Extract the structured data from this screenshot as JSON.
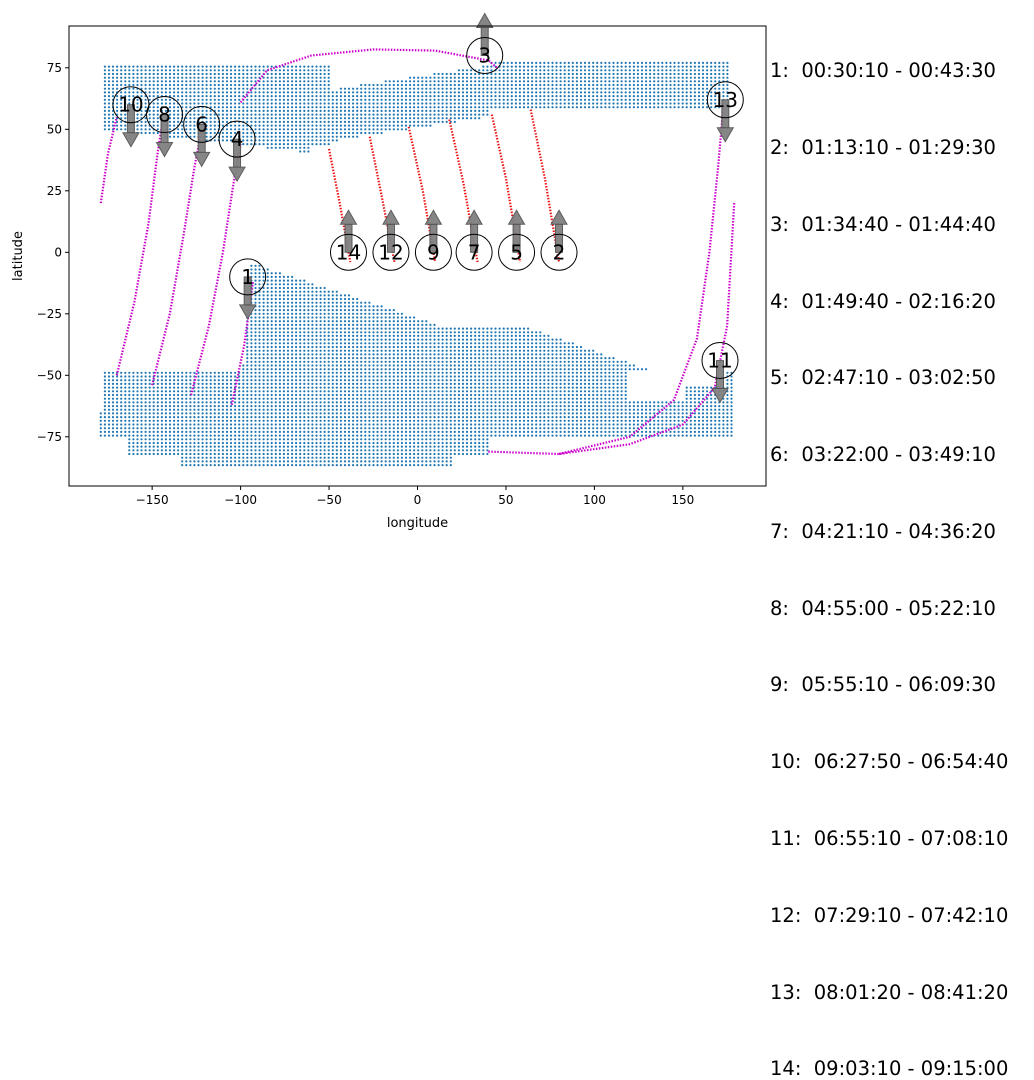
{
  "chart_data": {
    "type": "scatter",
    "xlabel": "longitude",
    "ylabel": "latitude",
    "xlim": [
      -197,
      197
    ],
    "ylim": [
      -95,
      92
    ],
    "xticks": [
      -150,
      -100,
      -50,
      0,
      50,
      100,
      150
    ],
    "yticks": [
      -75,
      -50,
      -25,
      0,
      25,
      50,
      75
    ],
    "colors": {
      "coverage": "#1f77b4",
      "magenta_track": "#cc00cc",
      "red_track": "#ee1111",
      "arrow": "#808080"
    },
    "coverage_region": {
      "description_color": "#1f77b4",
      "rows_lat_step": 1.5,
      "lon_step": 2.3
    },
    "passes": [
      {
        "id": 1,
        "label": "1",
        "time": "00:30:10 - 00:43:30",
        "track": [
          [
            -105,
            -62
          ],
          [
            -98,
            -38
          ],
          [
            -93,
            -12
          ]
        ],
        "color": "magenta",
        "marker": [
          -96,
          -10
        ],
        "arrow_dir": "down"
      },
      {
        "id": 2,
        "label": "2",
        "time": "01:13:10 - 01:29:30",
        "track": [
          [
            64,
            58
          ],
          [
            72,
            30
          ],
          [
            80,
            -4
          ]
        ],
        "color": "red",
        "marker": [
          80,
          0
        ],
        "arrow_dir": "up"
      },
      {
        "id": 3,
        "label": "3",
        "time": "01:34:40 - 01:44:40",
        "track": [
          [
            -100,
            61
          ],
          [
            -85,
            74
          ],
          [
            -60,
            80
          ],
          [
            -25,
            82.5
          ],
          [
            10,
            82
          ],
          [
            40,
            78
          ],
          [
            45,
            75
          ]
        ],
        "color": "magenta",
        "marker": [
          38,
          80
        ],
        "arrow_dir": "up"
      },
      {
        "id": 4,
        "label": "4",
        "time": "01:49:40 - 02:16:20",
        "track": [
          [
            -128,
            -58
          ],
          [
            -118,
            -30
          ],
          [
            -110,
            0
          ],
          [
            -104,
            28
          ],
          [
            -100,
            44
          ]
        ],
        "color": "magenta",
        "marker": [
          -102,
          46
        ],
        "arrow_dir": "down"
      },
      {
        "id": 5,
        "label": "5",
        "time": "02:47:10 - 03:02:50",
        "track": [
          [
            42,
            56
          ],
          [
            50,
            30
          ],
          [
            58,
            -4
          ]
        ],
        "color": "red",
        "marker": [
          56,
          0
        ],
        "arrow_dir": "up"
      },
      {
        "id": 6,
        "label": "6",
        "time": "03:22:00 - 03:49:10",
        "track": [
          [
            -150,
            -54
          ],
          [
            -140,
            -25
          ],
          [
            -132,
            8
          ],
          [
            -126,
            35
          ],
          [
            -122,
            50
          ]
        ],
        "color": "magenta",
        "marker": [
          -122,
          52
        ],
        "arrow_dir": "down"
      },
      {
        "id": 7,
        "label": "7",
        "time": "04:21:10 - 04:36:20",
        "track": [
          [
            18,
            54
          ],
          [
            26,
            28
          ],
          [
            34,
            -4
          ]
        ],
        "color": "red",
        "marker": [
          32,
          0
        ],
        "arrow_dir": "up"
      },
      {
        "id": 8,
        "label": "8",
        "time": "04:55:00 - 05:22:10",
        "track": [
          [
            -170,
            -50
          ],
          [
            -160,
            -20
          ],
          [
            -152,
            12
          ],
          [
            -147,
            40
          ],
          [
            -144,
            54
          ]
        ],
        "color": "magenta",
        "marker": [
          -143,
          56
        ],
        "arrow_dir": "down"
      },
      {
        "id": 9,
        "label": "9",
        "time": "05:55:10 - 06:09:30",
        "track": [
          [
            -5,
            51
          ],
          [
            3,
            25
          ],
          [
            10,
            -4
          ]
        ],
        "color": "red",
        "marker": [
          9,
          0
        ],
        "arrow_dir": "up"
      },
      {
        "id": 10,
        "label": "10",
        "time": "06:27:50 - 06:54:40",
        "track": [
          [
            -179,
            20
          ],
          [
            -175,
            40
          ],
          [
            -170,
            55
          ]
        ],
        "color": "magenta",
        "marker": [
          -162,
          60
        ],
        "arrow_dir": "down"
      },
      {
        "id": 11,
        "label": "11",
        "time": "06:55:10 - 07:08:10",
        "track": [
          [
            40,
            -81
          ],
          [
            80,
            -82
          ],
          [
            120,
            -78
          ],
          [
            150,
            -70
          ],
          [
            168,
            -55
          ],
          [
            175,
            -30
          ],
          [
            179,
            20
          ]
        ],
        "color": "magenta",
        "marker": [
          171,
          -44
        ],
        "arrow_dir": "down"
      },
      {
        "id": 12,
        "label": "12",
        "time": "07:29:10 - 07:42:10",
        "track": [
          [
            -27,
            47
          ],
          [
            -20,
            22
          ],
          [
            -13,
            -4
          ]
        ],
        "color": "red",
        "marker": [
          -15,
          0
        ],
        "arrow_dir": "up"
      },
      {
        "id": 13,
        "label": "13",
        "time": "08:01:20 - 08:41:20",
        "track": [
          [
            80,
            -82
          ],
          [
            120,
            -75
          ],
          [
            145,
            -60
          ],
          [
            158,
            -35
          ],
          [
            165,
            0
          ],
          [
            170,
            35
          ],
          [
            173,
            60
          ]
        ],
        "color": "magenta",
        "marker": [
          174,
          62
        ],
        "arrow_dir": "down"
      },
      {
        "id": 14,
        "label": "14",
        "time": "09:03:10 - 09:15:00",
        "track": [
          [
            -50,
            42
          ],
          [
            -44,
            20
          ],
          [
            -38,
            -4
          ]
        ],
        "color": "red",
        "marker": [
          -39,
          0
        ],
        "arrow_dir": "up"
      }
    ],
    "legend_entries": [
      "1:  00:30:10 - 00:43:30",
      "2:  01:13:10 - 01:29:30",
      "3:  01:34:40 - 01:44:40",
      "4:  01:49:40 - 02:16:20",
      "5:  02:47:10 - 03:02:50",
      "6:  03:22:00 - 03:49:10",
      "7:  04:21:10 - 04:36:20",
      "8:  04:55:00 - 05:22:10",
      "9:  05:55:10 - 06:09:30",
      "10:  06:27:50 - 06:54:40",
      "11:  06:55:10 - 07:08:10",
      "12:  07:29:10 - 07:42:10",
      "13:  08:01:20 - 08:41:20",
      "14:  09:03:10 - 09:15:00"
    ]
  }
}
